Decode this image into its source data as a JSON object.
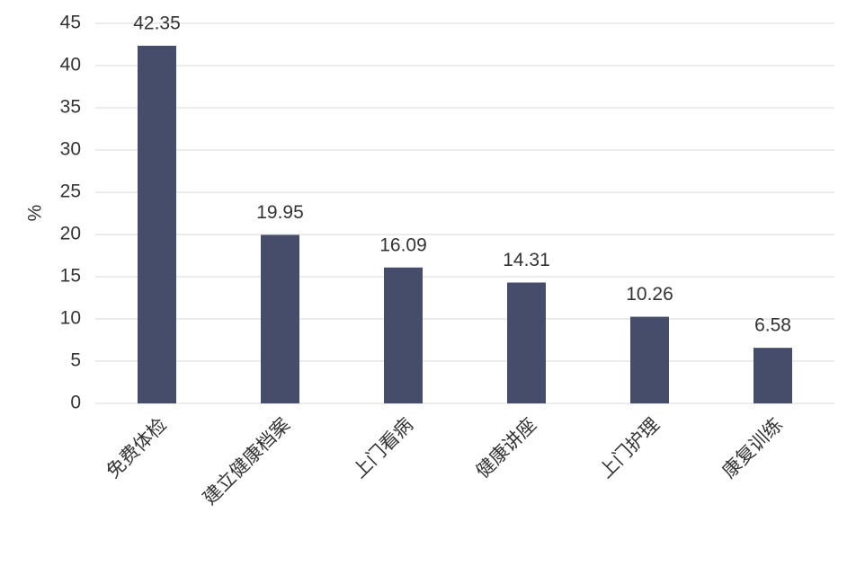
{
  "chart_data": {
    "type": "bar",
    "y_label": "%",
    "categories": [
      "免费体检",
      "建立健康档案",
      "上门看病",
      "健康讲座",
      "上门护理",
      "康复训练"
    ],
    "values": [
      42.35,
      19.95,
      16.09,
      14.31,
      10.26,
      6.58
    ],
    "color": "#464d6b",
    "ylim": [
      0,
      45
    ],
    "yticks": [
      0,
      5,
      10,
      15,
      20,
      25,
      30,
      35,
      40,
      45
    ],
    "grid": true
  }
}
